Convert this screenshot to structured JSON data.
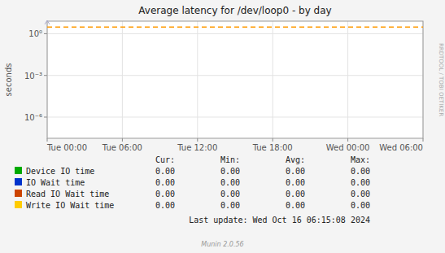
{
  "chart_data": {
    "type": "line",
    "title": "Average latency for /dev/loop0 - by day",
    "y_label": "seconds",
    "log": "y",
    "grid": true,
    "categories": [
      "Tue 00:00",
      "Tue 06:00",
      "Tue 12:00",
      "Tue 18:00",
      "Wed 00:00",
      "Wed 06:00"
    ],
    "ylim": [
      3e-08,
      8.0
    ],
    "yticks": [
      {
        "value": 1e-06,
        "label": "10⁻⁶"
      },
      {
        "value": 0.001,
        "label": "10⁻³"
      },
      {
        "value": 1,
        "label": "10⁰"
      }
    ],
    "reference_line": {
      "value": 3.0,
      "color": "#ff9900",
      "line_style": "dashed"
    },
    "series": [
      {
        "name": "Device IO time",
        "color": "#00aa00"
      },
      {
        "name": "IO Wait time",
        "color": "#0033cc"
      },
      {
        "name": "Read IO Wait time",
        "color": "#cc4400"
      },
      {
        "name": "Write IO Wait time",
        "color": "#ffcc00"
      }
    ],
    "table": {
      "headers": [
        "Cur:",
        "Min:",
        "Avg:",
        "Max:"
      ],
      "rows": [
        [
          "0.00",
          "0.00",
          "0.00",
          "0.00"
        ],
        [
          "0.00",
          "0.00",
          "0.00",
          "0.00"
        ],
        [
          "0.00",
          "0.00",
          "0.00",
          "0.00"
        ],
        [
          "0.00",
          "0.00",
          "0.00",
          "0.00"
        ]
      ]
    },
    "last_update": "Last update: Wed Oct 16 06:15:08 2024",
    "watermark": "Munin 2.0.56",
    "side_label": "RRDTOOL / TOBI OETIKER"
  }
}
